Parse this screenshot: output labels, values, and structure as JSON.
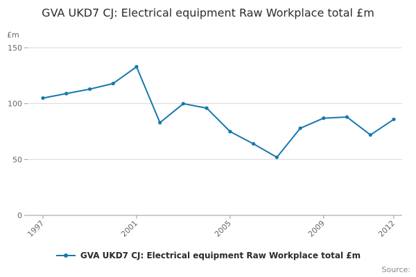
{
  "title": "GVA UKD7 CJ: Electrical equipment Raw Workplace total £m",
  "y_unit_label": "£m",
  "source_label": "Source:",
  "legend": {
    "label": "GVA UKD7 CJ: Electrical equipment Raw Workplace total £m"
  },
  "colors": {
    "series": "#1577ad",
    "grid": "#d9d9d9",
    "axis": "#999999",
    "tick_text": "#666666"
  },
  "chart_data": {
    "type": "line",
    "title": "GVA UKD7 CJ: Electrical equipment Raw Workplace total £m",
    "xlabel": "",
    "ylabel": "£m",
    "x": [
      1997,
      1998,
      1999,
      2000,
      2001,
      2002,
      2003,
      2004,
      2005,
      2006,
      2007,
      2008,
      2009,
      2010,
      2011,
      2012
    ],
    "series": [
      {
        "name": "GVA UKD7 CJ: Electrical equipment Raw Workplace total £m",
        "values": [
          105,
          109,
          113,
          118,
          133,
          83,
          100,
          96,
          75,
          64,
          52,
          78,
          87,
          88,
          72,
          86
        ]
      }
    ],
    "ylim": [
      0,
      150
    ],
    "y_ticks": [
      0,
      50,
      100,
      150
    ],
    "x_ticks": [
      1997,
      2001,
      2005,
      2009,
      2012
    ],
    "grid": true,
    "legend_position": "bottom"
  }
}
